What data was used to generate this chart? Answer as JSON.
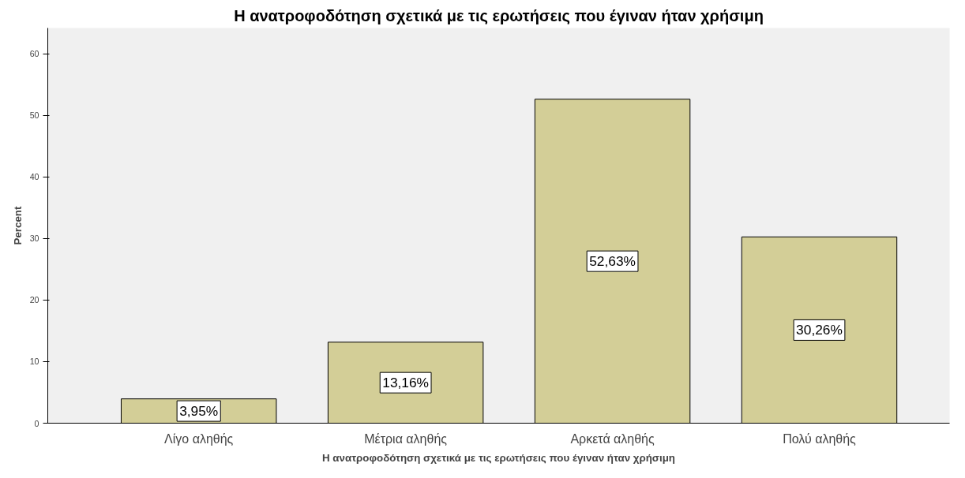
{
  "chart_data": {
    "type": "bar",
    "title": "Η ανατροφοδότηση σχετικά με τις ερωτήσεις που έγιναν ήταν χρήσιμη",
    "xlabel": "Η ανατροφοδότηση σχετικά με τις ερωτήσεις που έγιναν ήταν χρήσιμη",
    "ylabel": "Percent",
    "categories": [
      "Λίγο αληθής",
      "Μέτρια αληθής",
      "Αρκετά αληθής",
      "Πολύ αληθής"
    ],
    "values": [
      3.95,
      13.16,
      52.63,
      30.26
    ],
    "value_labels": [
      "3,95%",
      "13,16%",
      "52,63%",
      "30,26%"
    ],
    "color": "#d3ce97",
    "ylim": [
      0,
      64.2
    ],
    "yticks": [
      0,
      10,
      20,
      30,
      40,
      50,
      60
    ],
    "grid": false
  }
}
